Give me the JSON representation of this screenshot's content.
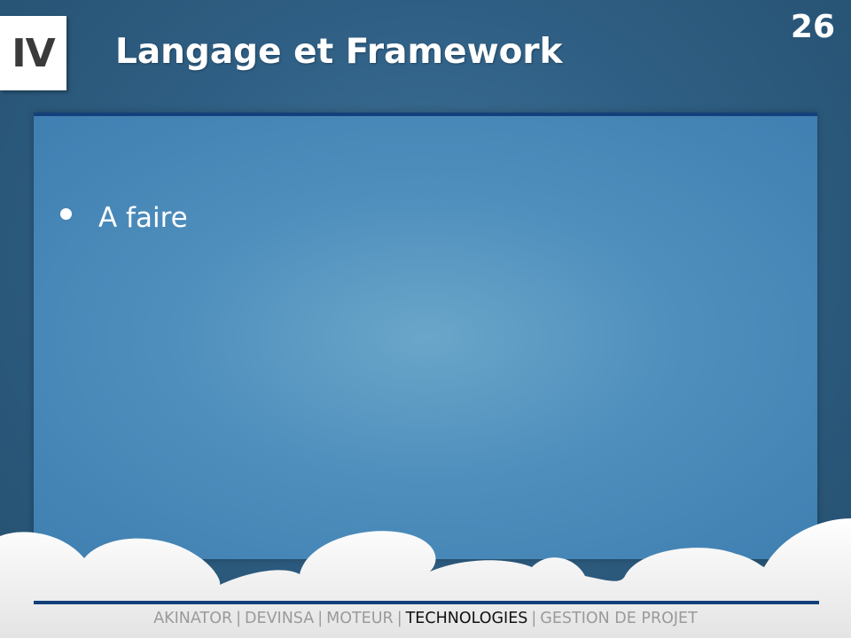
{
  "slide": {
    "section_numeral": "IV",
    "title": "Langage et Framework",
    "number": "26"
  },
  "content": {
    "bullets": [
      "A faire"
    ]
  },
  "footer": {
    "items": [
      {
        "label": "AKINATOR",
        "active": false
      },
      {
        "label": "DEVINSA",
        "active": false
      },
      {
        "label": "MOTEUR",
        "active": false
      },
      {
        "label": "TECHNOLOGIES",
        "active": true
      },
      {
        "label": "GESTION DE PROJET",
        "active": false
      }
    ],
    "separator": "|"
  },
  "colors": {
    "accent_rule": "#13407a",
    "active_nav": "#111111",
    "inactive_nav": "#9a9a9a"
  }
}
